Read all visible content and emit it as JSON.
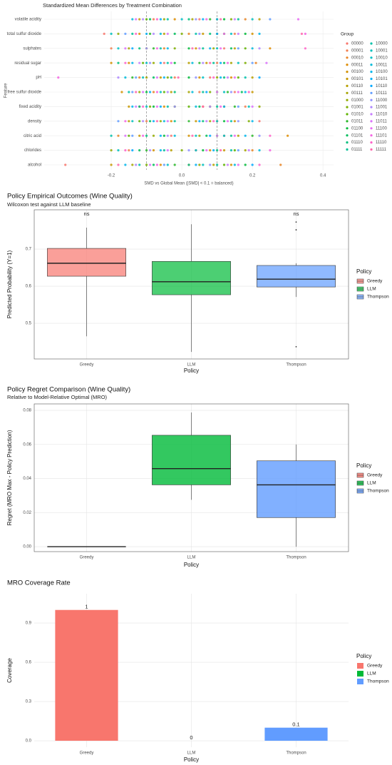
{
  "chart_data": [
    {
      "type": "scatter",
      "title": "Standardized Mean Differences by Treatment Combination",
      "x_label": "SMD vs Global Mean (|SMD| < 0.1 = balanced)",
      "y_label": "Feature",
      "legend_title": "Group",
      "categories": [
        "volatile acidity",
        "total sulfur dioxide",
        "sulphates",
        "residual sugar",
        "pH",
        "free sulfur dioxide",
        "fixed acidity",
        "density",
        "citric acid",
        "chlorides",
        "alcohol"
      ],
      "xlim": [
        -0.39,
        0.43
      ],
      "xticks": [
        -0.2,
        {
          "value": 0,
          "label": "0.0"
        },
        0.2,
        0.4
      ],
      "vlines": [
        -0.1,
        0.1
      ],
      "grid": true,
      "series": [
        {
          "name": "00000",
          "color": "#F8766D",
          "values": [
            0.05,
            -0.22,
            0.12,
            -0.05,
            0.08,
            0.15,
            -0.12,
            0.22,
            -0.03,
            0.04,
            -0.33
          ]
        },
        {
          "name": "00001",
          "color": "#F17E4F",
          "values": [
            -0.08,
            0.15,
            -0.2,
            0.1,
            -0.02,
            0.05,
            0.18,
            -0.1,
            0.12,
            -0.15,
            0.02
          ]
        },
        {
          "name": "00010",
          "color": "#E88526",
          "values": [
            0.18,
            0.02,
            -0.05,
            0.21,
            -0.12,
            -0.08,
            0.06,
            0.1,
            -0.18,
            0.2,
            0.28
          ]
        },
        {
          "name": "00011",
          "color": "#DE8C00",
          "values": [
            -0.02,
            -0.12,
            0.25,
            -0.15,
            0.14,
            0.1,
            -0.05,
            -0.03,
            0.3,
            0.08,
            -0.06
          ]
        },
        {
          "name": "00100",
          "color": "#D39200",
          "values": [
            0.1,
            0.2,
            0.04,
            -0.2,
            0.05,
            -0.17,
            0.12,
            0.15,
            0.02,
            -0.08,
            0.14
          ]
        },
        {
          "name": "00101",
          "color": "#C79800",
          "values": [
            -0.12,
            0.06,
            -0.1,
            0.07,
            -0.06,
            0.2,
            -0.15,
            0.04,
            -0.12,
            0.12,
            -0.2
          ]
        },
        {
          "name": "00110",
          "color": "#B79F00",
          "values": [
            0.22,
            -0.05,
            0.15,
            0.02,
            0.2,
            -0.03,
            0.08,
            -0.15,
            0.16,
            -0.03,
            0.09
          ]
        },
        {
          "name": "00111",
          "color": "#A6A400",
          "values": [
            0.03,
            0.1,
            -0.15,
            0.14,
            -0.1,
            0.02,
            -0.02,
            0.08,
            0.05,
            0.18,
            -0.14
          ]
        },
        {
          "name": "01000",
          "color": "#93AA00",
          "values": [
            -0.05,
            -0.18,
            0.09,
            -0.08,
            0.1,
            -0.12,
            0.22,
            -0.06,
            -0.08,
            -0.2,
            0.05
          ]
        },
        {
          "name": "01001",
          "color": "#7CAE00",
          "values": [
            0.14,
            0.0,
            -0.02,
            0.18,
            -0.04,
            0.08,
            -0.09,
            0.19,
            0.1,
            0.0,
            -0.1
          ]
        },
        {
          "name": "01010",
          "color": "#5EB300",
          "values": [
            -0.1,
            0.12,
            0.18,
            -0.11,
            0.16,
            -0.05,
            0.02,
            -0.12,
            -0.15,
            0.15,
            0.12
          ]
        },
        {
          "name": "01011",
          "color": "#2AB72A",
          "values": [
            0.08,
            -0.09,
            -0.08,
            0.05,
            -0.14,
            0.13,
            0.15,
            0.02,
            0.2,
            -0.1,
            -0.02
          ]
        },
        {
          "name": "01100",
          "color": "#00BA38",
          "values": [
            0.12,
            0.18,
            0.02,
            -0.02,
            0.02,
            -0.1,
            -0.08,
            0.12,
            -0.05,
            0.06,
            0.18
          ]
        },
        {
          "name": "01101",
          "color": "#00BD5C",
          "values": [
            -0.09,
            -0.02,
            0.14,
            0.12,
            -0.08,
            0.17,
            0.05,
            -0.09,
            0.07,
            -0.12,
            -0.08
          ]
        },
        {
          "name": "01110",
          "color": "#00BF7D",
          "values": [
            0.02,
            0.08,
            -0.12,
            -0.18,
            0.12,
            -0.02,
            -0.12,
            0.06,
            -0.1,
            0.1,
            0.02
          ]
        },
        {
          "name": "01111",
          "color": "#00C097",
          "values": [
            0.16,
            -0.14,
            0.06,
            0.09,
            -0.03,
            0.06,
            0.1,
            -0.02,
            0.14,
            -0.05,
            0.1
          ]
        },
        {
          "name": "10000",
          "color": "#00C1AA",
          "values": [
            -0.04,
            0.04,
            -0.06,
            -0.04,
            0.18,
            -0.15,
            -0.04,
            0.14,
            -0.2,
            0.14,
            -0.12
          ]
        },
        {
          "name": "10001",
          "color": "#00C0BC",
          "values": [
            0.2,
            -0.2,
            0.1,
            0.16,
            -0.11,
            0.12,
            0.19,
            -0.14,
            0.04,
            -0.18,
            0.06
          ]
        },
        {
          "name": "10010",
          "color": "#00BFC4",
          "values": [
            0.0,
            0.14,
            -0.18,
            -0.1,
            0.06,
            -0.06,
            -0.1,
            0.1,
            0.12,
            0.04,
            -0.04
          ]
        },
        {
          "name": "10011",
          "color": "#00BBD9",
          "values": [
            -0.14,
            -0.06,
            0.2,
            0.03,
            -0.16,
            0.03,
            0.04,
            -0.05,
            -0.02,
            0.22,
            0.15
          ]
        },
        {
          "name": "10100",
          "color": "#00B6EB",
          "values": [
            0.1,
            0.22,
            -0.04,
            -0.14,
            0.11,
            0.18,
            -0.14,
            0.2,
            0.18,
            -0.06,
            -0.16
          ]
        },
        {
          "name": "10101",
          "color": "#00B0F6",
          "values": [
            0.06,
            -0.1,
            0.08,
            0.11,
            -0.05,
            -0.09,
            0.12,
            -0.08,
            -0.06,
            0.09,
            0.04
          ]
        },
        {
          "name": "10110",
          "color": "#00A9FF",
          "values": [
            -0.06,
            0.1,
            -0.14,
            -0.06,
            0.22,
            0.07,
            -0.06,
            0.05,
            0.08,
            -0.14,
            0.2
          ]
        },
        {
          "name": "10111",
          "color": "#619CFF",
          "values": [
            0.25,
            -0.16,
            0.16,
            0.2,
            -0.13,
            -0.14,
            0.16,
            -0.18,
            -0.14,
            0.16,
            -0.05
          ]
        },
        {
          "name": "11000",
          "color": "#8F91FF",
          "values": [
            0.04,
            0.05,
            -0.1,
            -0.09,
            0.04,
            0.14,
            -0.02,
            0.16,
            0.22,
            0.02,
            0.08
          ]
        },
        {
          "name": "11001",
          "color": "#AE87FF",
          "values": [
            -0.11,
            -0.08,
            0.22,
            0.06,
            -0.18,
            -0.04,
            0.08,
            -0.11,
            -0.04,
            -0.09,
            -0.13
          ]
        },
        {
          "name": "11010",
          "color": "#C77CFF",
          "values": [
            0.15,
            0.16,
            0.05,
            -0.12,
            0.13,
            0.1,
            -0.13,
            0.07,
            0.1,
            0.19,
            0.13
          ]
        },
        {
          "name": "11011",
          "color": "#DB72FB",
          "values": [
            -0.13,
            -0.04,
            -0.16,
            0.24,
            -0.07,
            -0.11,
            0.2,
            -0.04,
            -0.16,
            -0.04,
            -0.09
          ]
        },
        {
          "name": "11100",
          "color": "#E76BF3",
          "values": [
            0.33,
            0.12,
            0.11,
            -0.03,
            0.15,
            0.16,
            -0.07,
            0.13,
            0.15,
            0.07,
            0.16
          ]
        },
        {
          "name": "11101",
          "color": "#F564E3",
          "values": [
            0.07,
            0.35,
            -0.07,
            0.13,
            -0.35,
            -0.07,
            0.11,
            -0.16,
            -0.11,
            0.25,
            -0.07
          ]
        },
        {
          "name": "11110",
          "color": "#FF61C9",
          "values": [
            -0.07,
            -0.13,
            0.35,
            -0.16,
            0.09,
            0.19,
            -0.11,
            0.09,
            0.25,
            -0.16,
            0.22
          ]
        },
        {
          "name": "11111",
          "color": "#FF65AC",
          "values": [
            0.11,
            0.34,
            0.03,
            0.08,
            -0.01,
            -0.13,
            0.06,
            -0.07,
            0.03,
            0.11,
            -0.18
          ]
        }
      ]
    },
    {
      "type": "box",
      "title": "Policy Empirical Outcomes (Wine Quality)",
      "subtitle": "Wilcoxon test against LLM baseline",
      "x_label": "Policy",
      "y_label": "Predicted Probability (Y=1)",
      "legend_title": "Policy",
      "categories": [
        "Greedy",
        "LLM",
        "Thompson"
      ],
      "colors": [
        "#F8766D",
        "#00BA38",
        "#619CFF"
      ],
      "opacity": 0.7,
      "whisker_low": [
        0.465,
        0.423,
        0.571
      ],
      "q1": [
        0.627,
        0.577,
        0.598
      ],
      "median": [
        0.662,
        0.612,
        0.619
      ],
      "q3": [
        0.702,
        0.667,
        0.656
      ],
      "whisker_high": [
        0.758,
        0.767,
        0.662
      ],
      "outliers": [
        [],
        [],
        [
          0.773,
          0.752,
          0.437
        ]
      ],
      "annotations": [
        "ns",
        null,
        "ns"
      ],
      "ylim": [
        0.404,
        0.806
      ],
      "yticks": [
        0.5,
        0.6,
        0.7
      ],
      "grid": true
    },
    {
      "type": "box",
      "title": "Policy Regret Comparison (Wine Quality)",
      "subtitle": "Relative to Model-Relative Optimal (MRO)",
      "x_label": "Policy",
      "y_label": "Regret (MRO Max - Policy Prediction)",
      "legend_title": "Policy",
      "categories": [
        "Greedy",
        "LLM",
        "Thompson"
      ],
      "colors": [
        "#F8766D",
        "#00BA38",
        "#619CFF"
      ],
      "opacity": 0.8,
      "whisker_low": [
        0,
        0.0275,
        0
      ],
      "q1": [
        0,
        0.0363,
        0.0171
      ],
      "median": [
        0,
        0.0458,
        0.0363
      ],
      "q3": [
        0,
        0.0654,
        0.0504
      ],
      "whisker_high": [
        0,
        0.0788,
        0.06
      ],
      "ylim": [
        -0.0029,
        0.0838
      ],
      "yticks": [
        {
          "value": 0,
          "label": "0.00"
        },
        {
          "value": 0.02,
          "label": "0.02"
        },
        {
          "value": 0.04,
          "label": "0.04"
        },
        {
          "value": 0.06,
          "label": "0.06"
        },
        {
          "value": 0.08,
          "label": "0.08"
        }
      ],
      "grid": true
    },
    {
      "type": "bar",
      "title": "MRO Coverage Rate",
      "x_label": "Policy",
      "y_label": "Coverage",
      "legend_title": "Policy",
      "categories": [
        "Greedy",
        "LLM",
        "Thompson"
      ],
      "colors": [
        "#F8766D",
        "#00BA38",
        "#619CFF"
      ],
      "values": [
        1,
        0,
        0.1
      ],
      "ylim": [
        -0.049,
        1.124
      ],
      "yticks": [
        {
          "value": 0,
          "label": "0.0"
        },
        0.3,
        0.6,
        0.9
      ],
      "grid": true
    }
  ]
}
